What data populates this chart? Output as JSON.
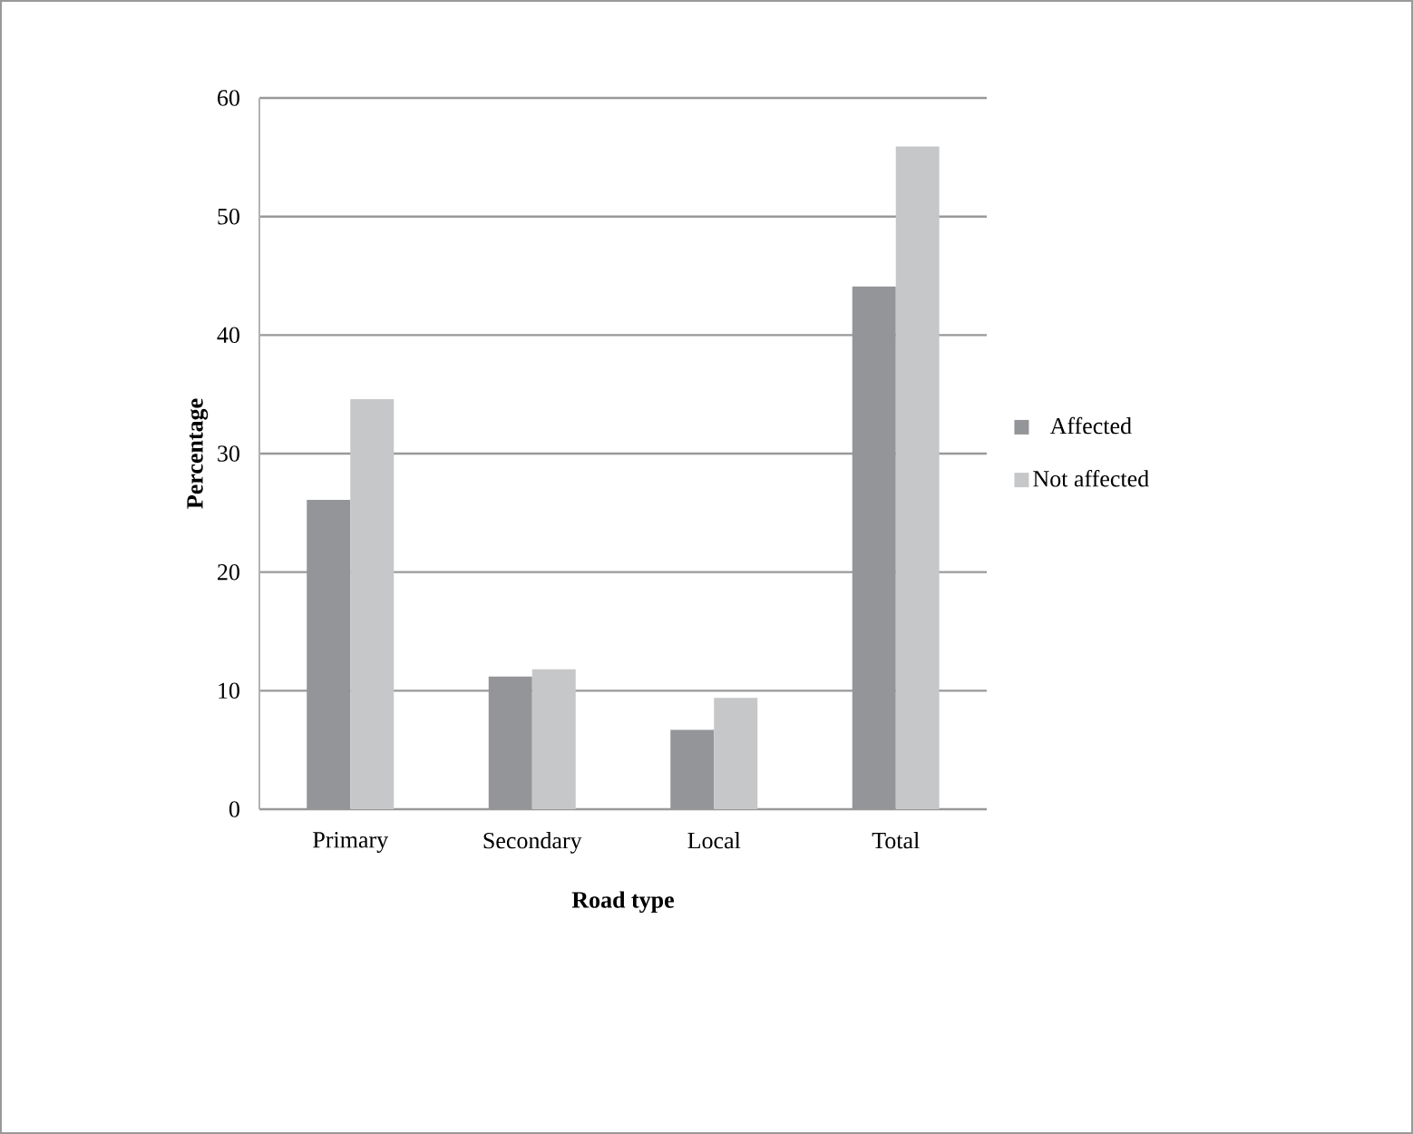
{
  "chart_data": {
    "type": "bar",
    "xlabel": "Road type",
    "ylabel": "Percentage",
    "categories": [
      "Primary",
      "Secondary",
      "Local",
      "Total"
    ],
    "series": [
      {
        "name": "Affected",
        "color": "#949598",
        "values": [
          26.1,
          11.2,
          6.7,
          44.1
        ]
      },
      {
        "name": "Not affected",
        "color": "#c6c7c9",
        "values": [
          34.6,
          11.8,
          9.4,
          55.9
        ]
      }
    ],
    "ylim": [
      0,
      60
    ],
    "yticks": [
      0,
      10,
      20,
      30,
      40,
      50,
      60
    ],
    "grid": "y",
    "legend": "right"
  }
}
